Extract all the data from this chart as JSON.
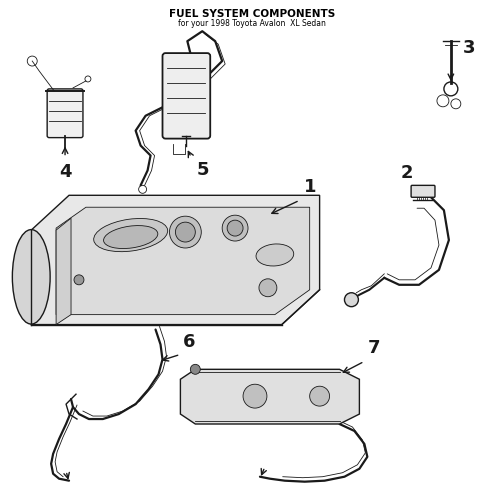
{
  "title": "FUEL SYSTEM COMPONENTS",
  "subtitle": "for your 1998 Toyota Avalon  XL Sedan",
  "bg_color": "#ffffff",
  "line_color": "#1a1a1a",
  "label_color": "#000000",
  "figsize": [
    5.04,
    4.95
  ],
  "dpi": 100,
  "lw_main": 1.0,
  "lw_thin": 0.6,
  "lw_thick": 1.6
}
